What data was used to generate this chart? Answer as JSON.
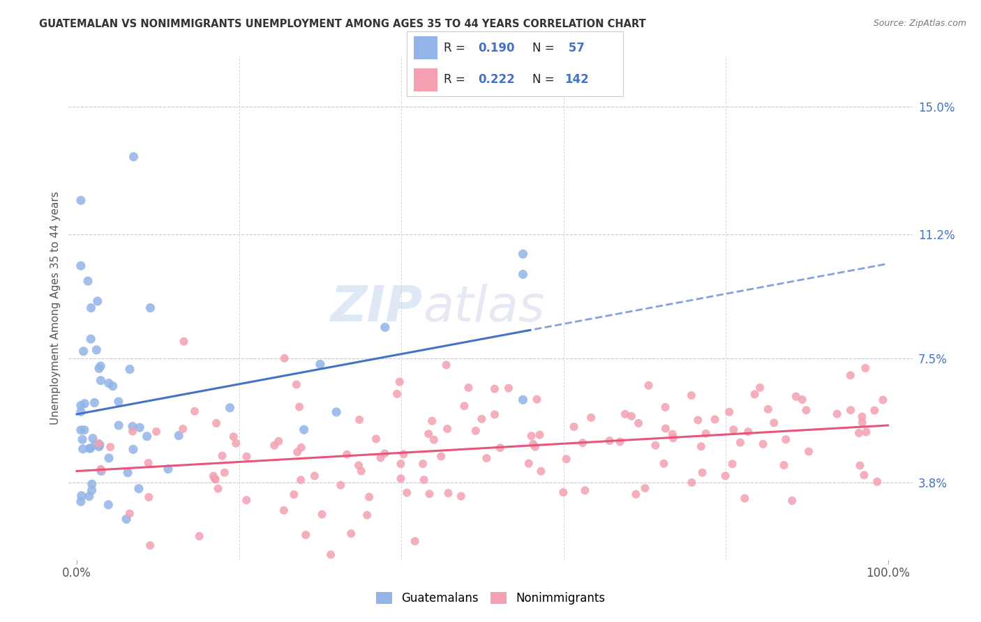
{
  "title": "GUATEMALAN VS NONIMMIGRANTS UNEMPLOYMENT AMONG AGES 35 TO 44 YEARS CORRELATION CHART",
  "source": "Source: ZipAtlas.com",
  "ylabel": "Unemployment Among Ages 35 to 44 years",
  "ytick_labels": [
    "3.8%",
    "7.5%",
    "11.2%",
    "15.0%"
  ],
  "ytick_values": [
    3.8,
    7.5,
    11.2,
    15.0
  ],
  "xtick_labels": [
    "0.0%",
    "100.0%"
  ],
  "guatemalan_color": "#92b4e8",
  "nonimmigrant_color": "#f4a0b0",
  "guatemalan_line_color": "#4472C4",
  "nonimmigrant_line_color": "#E8547A",
  "legend_label_guatemalan": "Guatemalans",
  "legend_label_nonimmigrant": "Nonimmigrants",
  "background_color": "#ffffff",
  "watermark_zip": "ZIP",
  "watermark_atlas": "atlas",
  "R_guatemalan": "0.190",
  "N_guatemalan": "57",
  "R_nonimmigrant": "0.222",
  "N_nonimmigrant": "142",
  "guat_seed": 77,
  "nonimm_seed": 33
}
